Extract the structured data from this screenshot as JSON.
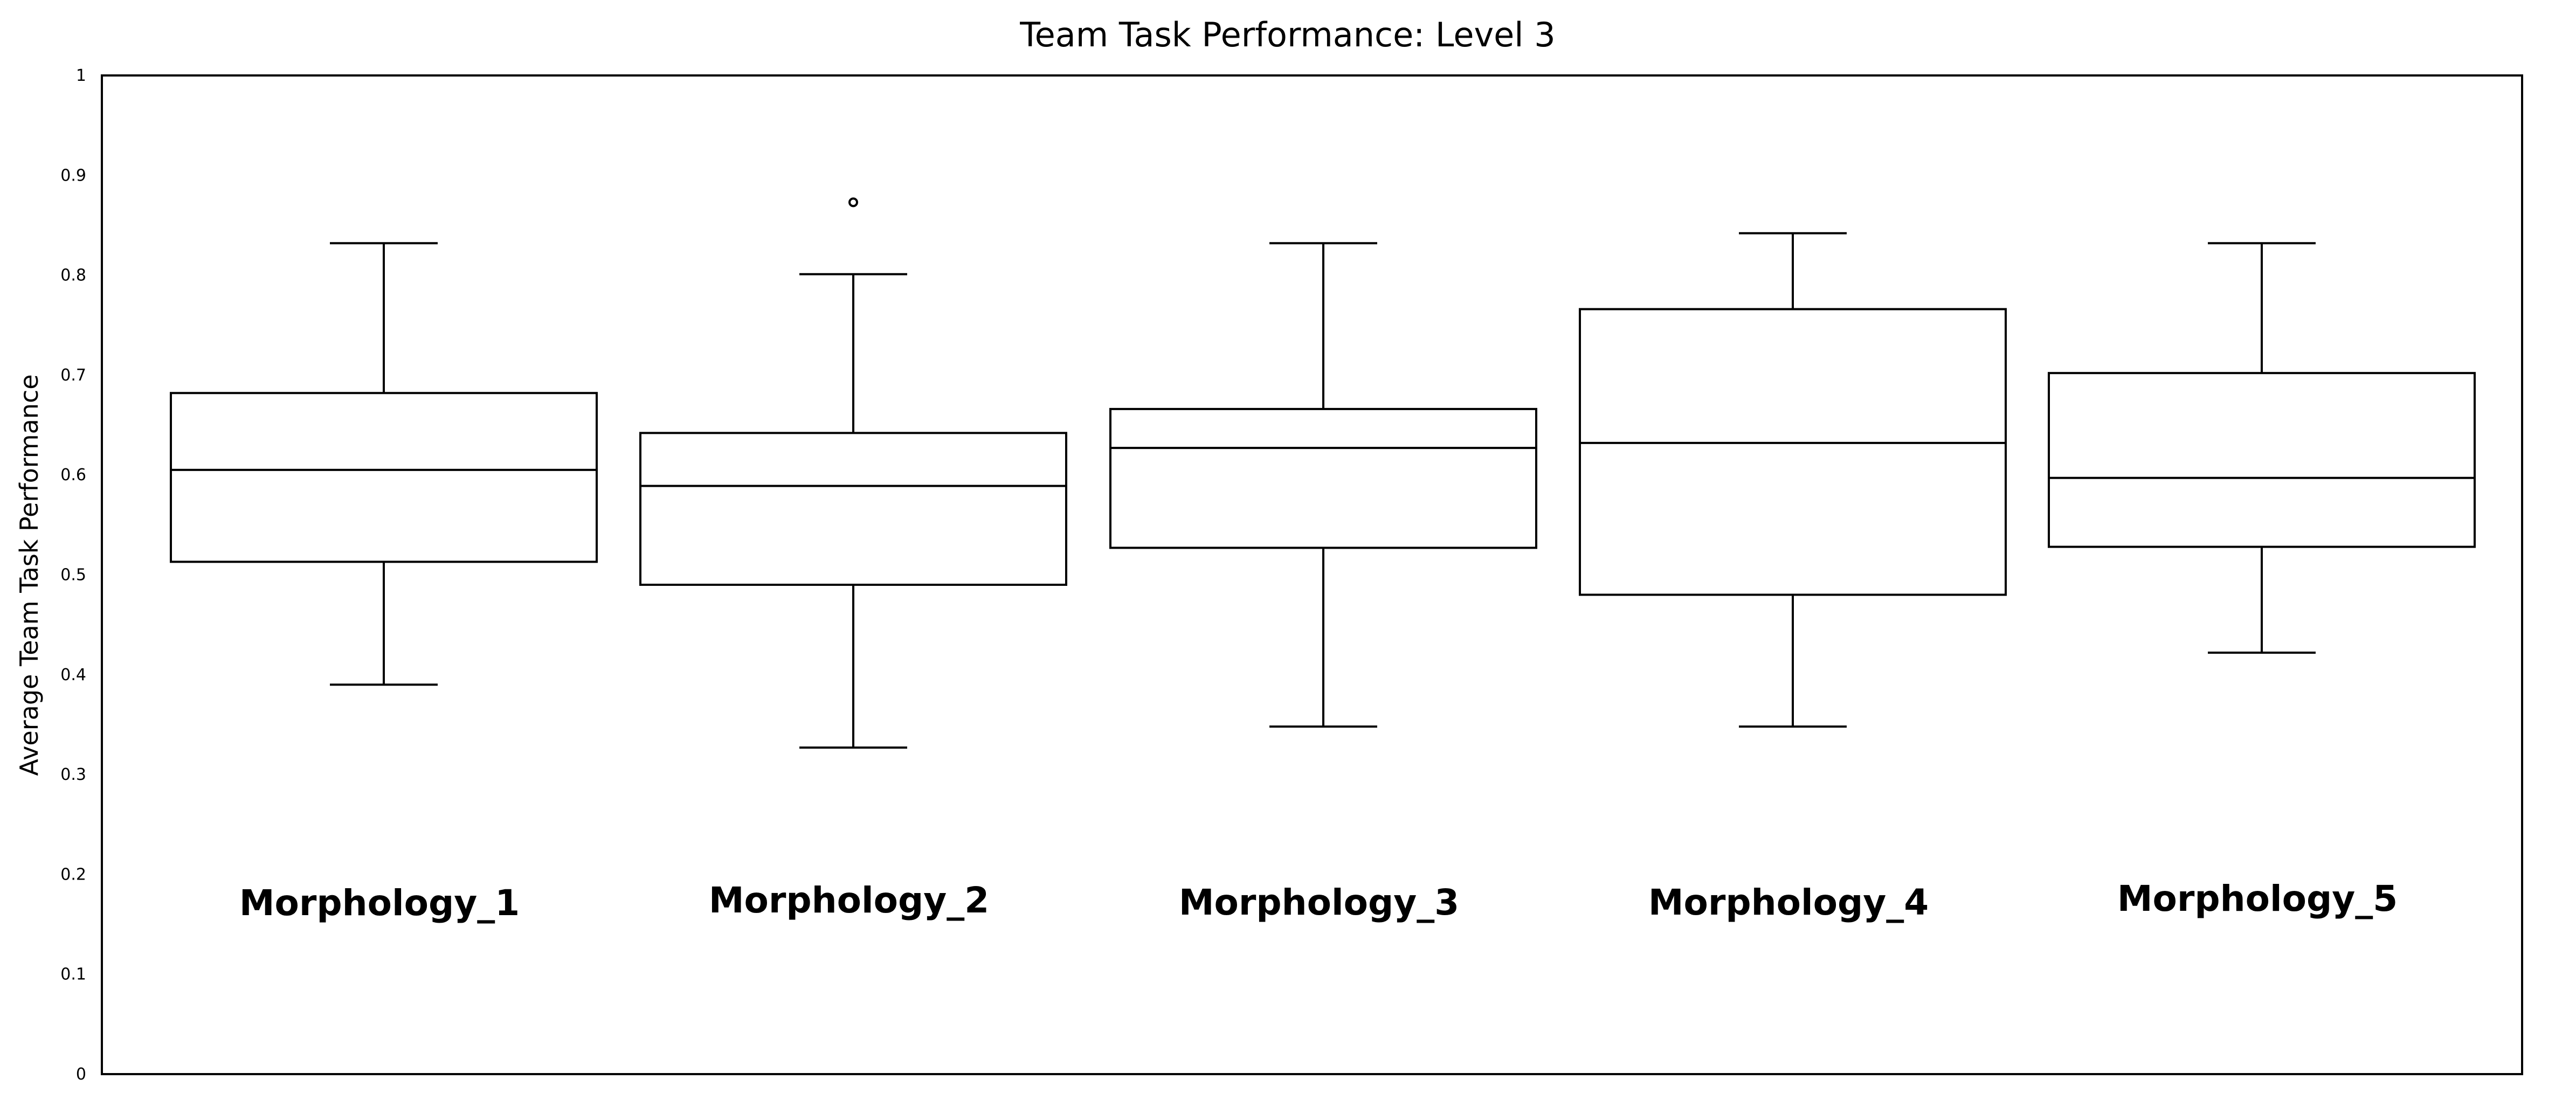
{
  "chart_data": {
    "type": "box",
    "title": "Team Task Performance: Level 3",
    "ylabel": "Average Team Task Performance",
    "xlabel": "",
    "ylim": [
      0,
      1
    ],
    "yticks": [
      "0",
      "0.1",
      "0.2",
      "0.3",
      "0.4",
      "0.5",
      "0.6",
      "0.7",
      "0.8",
      "0.9",
      "1"
    ],
    "grid": false,
    "series": [
      {
        "category": "Morphology_1",
        "min": 0.39,
        "q1": 0.513,
        "median": 0.605,
        "q3": 0.682,
        "max": 0.832,
        "outliers": []
      },
      {
        "category": "Morphology_2",
        "min": 0.327,
        "q1": 0.49,
        "median": 0.589,
        "q3": 0.642,
        "max": 0.801,
        "outliers": [
          0.873
        ]
      },
      {
        "category": "Morphology_3",
        "min": 0.348,
        "q1": 0.527,
        "median": 0.627,
        "q3": 0.666,
        "max": 0.832,
        "outliers": []
      },
      {
        "category": "Morphology_4",
        "min": 0.348,
        "q1": 0.48,
        "median": 0.632,
        "q3": 0.766,
        "max": 0.842,
        "outliers": []
      },
      {
        "category": "Morphology_5",
        "min": 0.422,
        "q1": 0.528,
        "median": 0.597,
        "q3": 0.702,
        "max": 0.832,
        "outliers": []
      }
    ]
  }
}
